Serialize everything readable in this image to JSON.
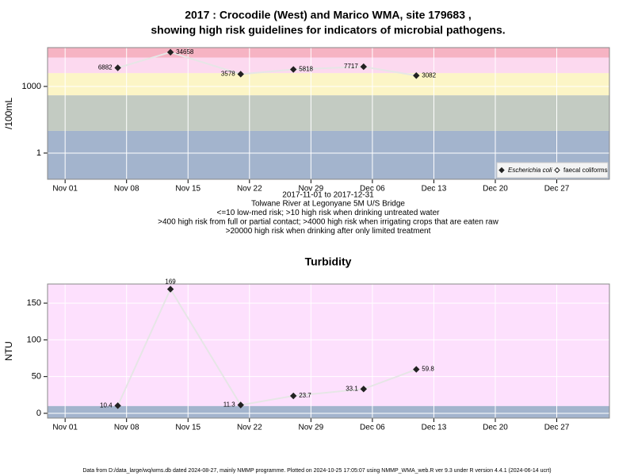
{
  "chart_data": [
    {
      "type": "line",
      "title": [
        "2017 : Crocodile (West) and Marico WMA, site 179683 ,",
        "showing high risk guidelines for indicators of microbial pathogens."
      ],
      "ylabel": "/100mL",
      "xlabel": "2017-11-01 to 2017-12-31",
      "notes": [
        "Tolwane River at Legonyane 5M U/S Bridge",
        "<=10 low-med risk; >10 high risk when drinking untreated water",
        ">400 high risk from full or partial contact; >4000 high risk when irrigating crops that are eaten raw",
        ">20000 high risk when drinking after only limited treatment"
      ],
      "x": [
        "Nov 07",
        "Nov 13",
        "Nov 21",
        "Nov 27",
        "Dec 05",
        "Dec 11"
      ],
      "series": [
        {
          "name": "Escherichia coli",
          "color": "#222222",
          "marker": "filled",
          "values": [
            6882,
            34658,
            3578,
            5818,
            7717,
            3082
          ]
        },
        {
          "name": "faecal coliforms",
          "color": "#222222",
          "marker": "open",
          "values": [
            null,
            null,
            null,
            null,
            null,
            null
          ]
        }
      ],
      "xlim": [
        "Oct 30",
        "Jan 02"
      ],
      "xticks": [
        "Nov 01",
        "Nov 08",
        "Nov 15",
        "Nov 22",
        "Nov 29",
        "Dec 06",
        "Dec 13",
        "Dec 20",
        "Dec 27"
      ],
      "log_y": true,
      "ylim": [
        0.066,
        56000
      ],
      "yticks": [
        1,
        1000
      ],
      "thresholds": [
        10,
        400,
        4000,
        20000
      ],
      "band_colors": [
        "#a3b4cd",
        "#c3cbc2",
        "#fcf5c6",
        "#fcd9ef",
        "#f6b3c3"
      ],
      "line_color": "#e6e6e6",
      "grid": true,
      "legend": "bottom-right"
    },
    {
      "type": "line",
      "title": [
        "Turbidity"
      ],
      "ylabel": "NTU",
      "x": [
        "Nov 07",
        "Nov 13",
        "Nov 21",
        "Nov 27",
        "Dec 05",
        "Dec 11"
      ],
      "series": [
        {
          "name": "Turbidity",
          "color": "#222222",
          "marker": "filled",
          "values": [
            10.4,
            169,
            11.3,
            23.7,
            33.1,
            59.8
          ]
        }
      ],
      "xlim": [
        "Oct 30",
        "Jan 02"
      ],
      "xticks": [
        "Nov 01",
        "Nov 08",
        "Nov 15",
        "Nov 22",
        "Nov 29",
        "Dec 06",
        "Dec 13",
        "Dec 20",
        "Dec 27"
      ],
      "log_y": false,
      "ylim": [
        -6.5,
        176
      ],
      "yticks": [
        0,
        50,
        100,
        150
      ],
      "thresholds": [
        10
      ],
      "band_colors": [
        "#a3b4cd",
        "#fde0fd"
      ],
      "line_color": "#e6e6e6",
      "grid": true
    }
  ],
  "footer": "Data from D:/data_large/wq/wms.db dated 2024-08-27, mainly NMMP programme. Plotted on 2024-10-25 17:05:07 using NMMP_WMA_web.R ver 9.3 under R version 4.4.1 (2024-06-14 ucrt)"
}
